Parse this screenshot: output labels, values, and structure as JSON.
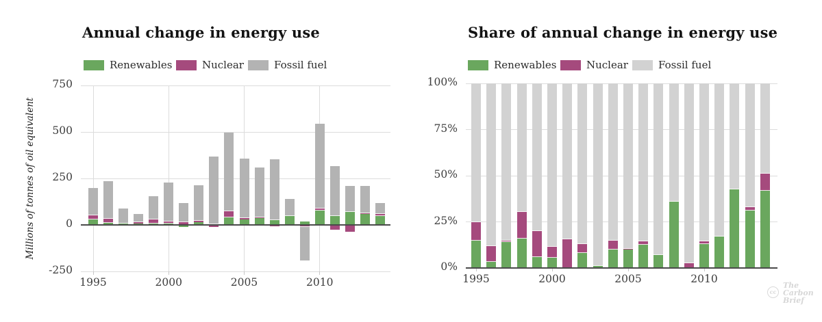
{
  "branding": {
    "cc_icon": "cc",
    "logo_lines": [
      "The",
      "Carbon",
      "Brief"
    ]
  },
  "chart_data": [
    {
      "type": "bar",
      "stacked": true,
      "title": "Annual change in energy use",
      "ylabel": "Millions of tonnes of oil equivalent",
      "ylim": [
        -250,
        750
      ],
      "grid": "horizontal and vertical at year ticks",
      "legend_position": "top",
      "years": [
        1995,
        1996,
        1997,
        1998,
        1999,
        2000,
        2001,
        2002,
        2003,
        2004,
        2005,
        2006,
        2007,
        2008,
        2009,
        2010,
        2011,
        2012,
        2013,
        2014
      ],
      "yticks": {
        "values": [
          750,
          500,
          250,
          0,
          -250
        ],
        "labels": [
          "750",
          "500",
          "250",
          "0",
          "-250"
        ]
      },
      "xticks": {
        "values": [
          1995,
          2000,
          2005,
          2010
        ],
        "labels": [
          "1995",
          "2000",
          "2005",
          "2010"
        ]
      },
      "series": [
        {
          "name": "Renewables",
          "color": "#6aa75e",
          "values": [
            30,
            10,
            8,
            8,
            7,
            8,
            -12,
            16,
            2,
            41,
            29,
            36,
            24,
            48,
            17,
            78,
            46,
            69,
            60,
            48
          ]
        },
        {
          "name": "Nuclear",
          "color": "#a54a7d",
          "values": [
            20,
            22,
            -4,
            6,
            24,
            12,
            16,
            6,
            -10,
            32,
            6,
            5,
            -8,
            -5,
            -6,
            10,
            -24,
            -36,
            4,
            10
          ]
        },
        {
          "name": "Fossil fuel",
          "color": "#b3b3b3",
          "values": [
            150,
            203,
            82,
            46,
            122,
            208,
            101,
            190,
            365,
            425,
            323,
            269,
            328,
            93,
            -185,
            457,
            270,
            142,
            147,
            60
          ]
        }
      ]
    },
    {
      "type": "bar",
      "stacked": true,
      "percent": true,
      "title": "Share of annual change in energy use",
      "ylabel": "",
      "ylim": [
        0,
        100
      ],
      "grid": "horizontal only",
      "legend_position": "top",
      "years": [
        1995,
        1996,
        1997,
        1998,
        1999,
        2000,
        2001,
        2002,
        2003,
        2004,
        2005,
        2006,
        2007,
        2008,
        2009,
        2010,
        2011,
        2012,
        2013,
        2014
      ],
      "yticks": {
        "values": [
          100,
          75,
          50,
          25,
          0
        ],
        "labels": [
          "100%",
          "75%",
          "50%",
          "25%",
          "0%"
        ]
      },
      "xticks": {
        "values": [
          1995,
          2000,
          2005,
          2010
        ],
        "labels": [
          "1995",
          "2000",
          "2005",
          "2010"
        ]
      },
      "series": [
        {
          "name": "Renewables",
          "color": "#6aa75e",
          "values": [
            15,
            3.5,
            14,
            16,
            6,
            5.5,
            0,
            8,
            1,
            10,
            10,
            12.5,
            7,
            36,
            0,
            13,
            17,
            42.5,
            31,
            42
          ]
        },
        {
          "name": "Nuclear",
          "color": "#a54a7d",
          "values": [
            10,
            8.5,
            1,
            14.5,
            14,
            6,
            15.5,
            5,
            0,
            5,
            0.5,
            2,
            0,
            0,
            2.5,
            1.5,
            0,
            0,
            2,
            9
          ]
        },
        {
          "name": "Fossil fuel",
          "color": "#d2d2d2",
          "values": [
            75,
            88,
            85,
            69.5,
            80,
            88.5,
            84.5,
            87,
            99,
            85,
            89.5,
            85.5,
            93,
            64,
            97.5,
            85.5,
            83,
            57.5,
            67,
            49
          ]
        }
      ]
    }
  ]
}
